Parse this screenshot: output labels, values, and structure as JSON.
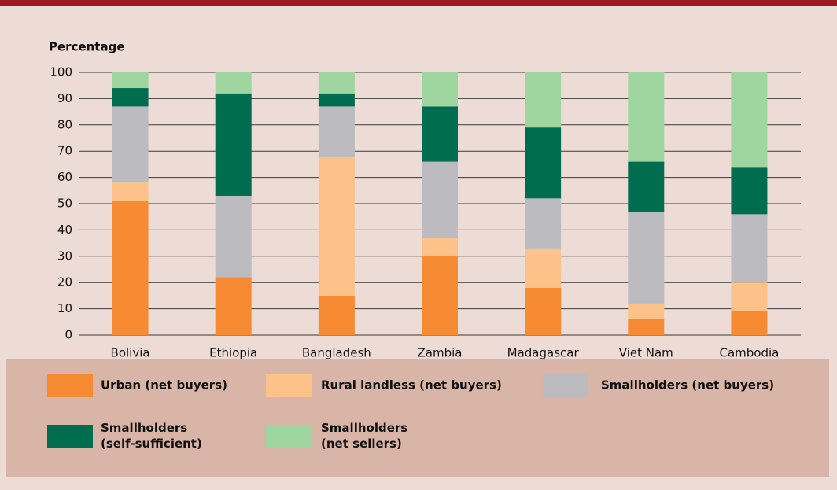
{
  "chart_data": {
    "type": "stacked_bar",
    "y_label": "Percentage",
    "categories": [
      "Bolivia",
      "Ethiopia",
      "Bangladesh",
      "Zambia",
      "Madagascar",
      "Viet Nam",
      "Cambodia"
    ],
    "series": [
      {
        "name": "Urban (net buyers)",
        "color": "#f68b33",
        "values": [
          51,
          22,
          15,
          30,
          18,
          6,
          9
        ]
      },
      {
        "name": "Rural landless (net buyers)",
        "color": "#fdc28a",
        "values": [
          7,
          0,
          53,
          7,
          15,
          6,
          11
        ]
      },
      {
        "name": "Smallholders (net buyers)",
        "color": "#bcbcc0",
        "values": [
          29,
          31,
          19,
          29,
          19,
          35,
          26
        ]
      },
      {
        "name": "Smallholders (self-sufficient)",
        "color": "#006e4e",
        "values": [
          7,
          39,
          5,
          21,
          27,
          19,
          18
        ]
      },
      {
        "name": "Smallholders (net sellers)",
        "color": "#9fd59f",
        "values": [
          6,
          8,
          8,
          13,
          21,
          34,
          36
        ]
      }
    ],
    "ylim": [
      0,
      100
    ],
    "yticks": [
      0,
      10,
      20,
      30,
      40,
      50,
      60,
      70,
      80,
      90,
      100
    ],
    "grid": true
  }
}
